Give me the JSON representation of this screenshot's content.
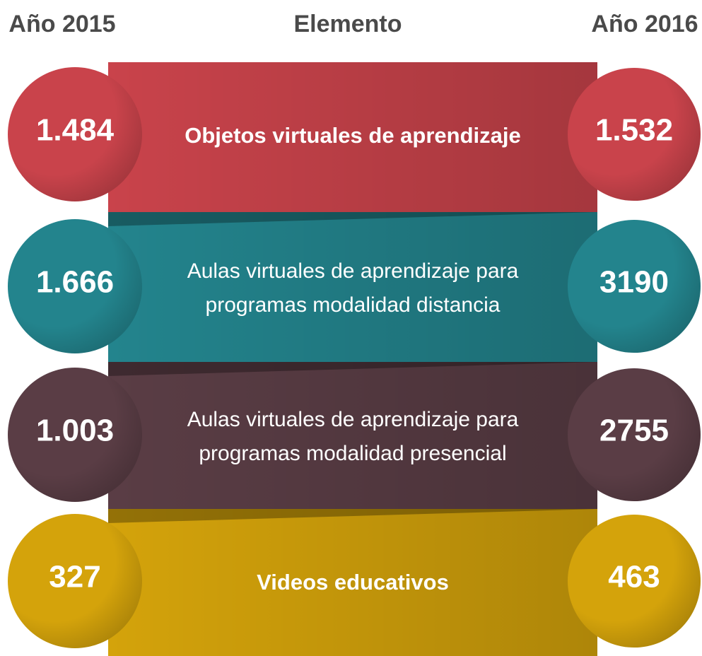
{
  "header": {
    "left": "Año 2015",
    "center": "Elemento",
    "right": "Año 2016"
  },
  "rows": [
    {
      "label_lines": [
        "Objetos virtuales de aprendizaje"
      ],
      "bold": true,
      "year_2015": "1.484",
      "year_2016": "1.532",
      "color": "#c9434b"
    },
    {
      "label_lines": [
        "Aulas virtuales de aprendizaje para",
        "programas modalidad distancia"
      ],
      "bold": false,
      "year_2015": "1.666",
      "year_2016": "3190",
      "color": "#23848d"
    },
    {
      "label_lines": [
        "Aulas virtuales de aprendizaje para",
        "programas modalidad presencial"
      ],
      "bold": false,
      "year_2015": "1.003",
      "year_2016": "2755",
      "color": "#5a3d45"
    },
    {
      "label_lines": [
        "Videos educativos"
      ],
      "bold": true,
      "year_2015": "327",
      "year_2016": "463",
      "color": "#d4a30b"
    }
  ]
}
